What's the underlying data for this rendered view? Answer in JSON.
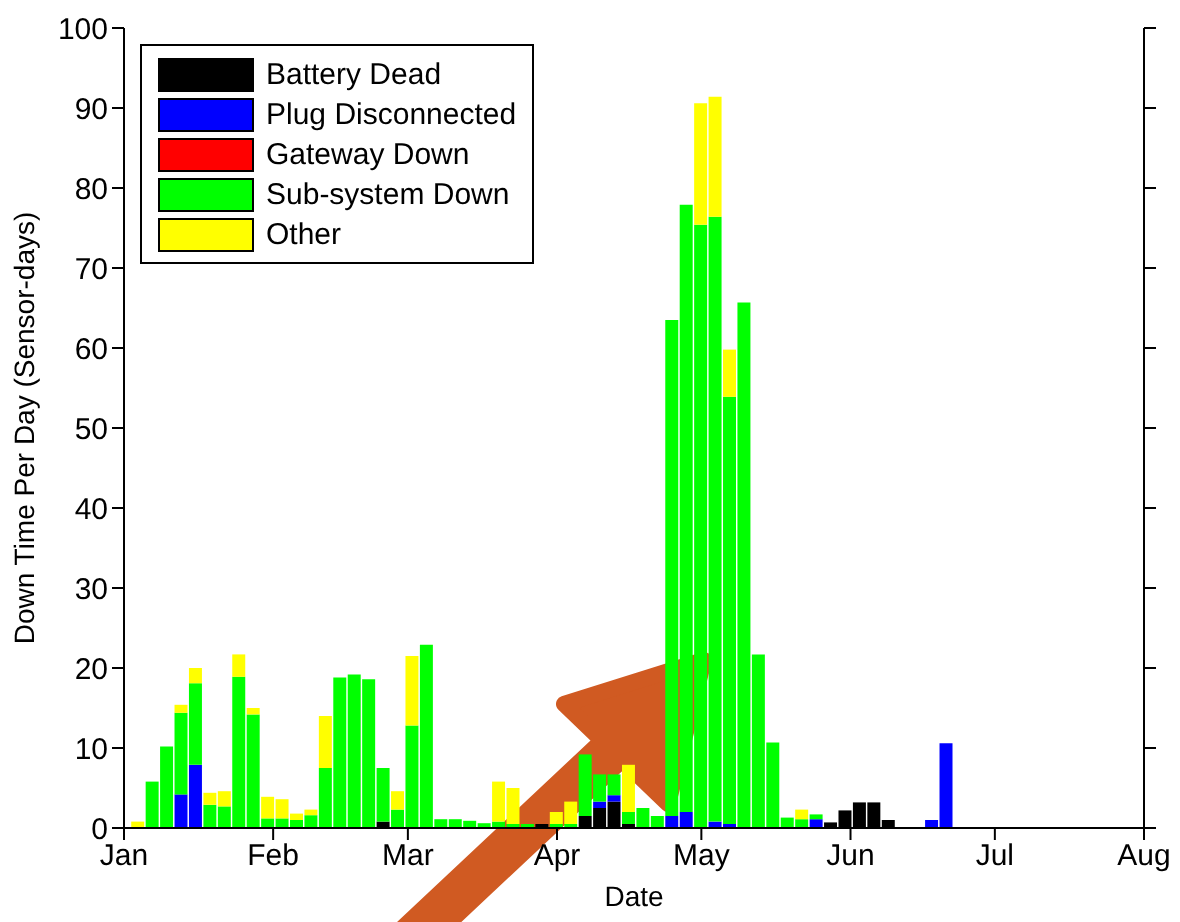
{
  "chart_data": {
    "type": "bar",
    "stacked": true,
    "xlabel": "Date",
    "ylabel": "Down Time Per Day (Sensor-days)",
    "x": [
      "--01-04",
      "--01-07",
      "--01-10",
      "--01-13",
      "--01-16",
      "--01-19",
      "--01-22",
      "--01-25",
      "--01-28",
      "--01-31",
      "--02-03",
      "--02-06",
      "--02-09",
      "--02-12",
      "--02-15",
      "--02-18",
      "--02-21",
      "--02-24",
      "--02-27",
      "--03-02",
      "--03-05",
      "--03-08",
      "--03-11",
      "--03-14",
      "--03-17",
      "--03-20",
      "--03-23",
      "--03-26",
      "--03-29",
      "--04-01",
      "--04-04",
      "--04-07",
      "--04-10",
      "--04-13",
      "--04-16",
      "--04-19",
      "--04-22",
      "--04-25",
      "--04-28",
      "--05-01",
      "--05-04",
      "--05-07",
      "--05-10",
      "--05-13",
      "--05-16",
      "--05-19",
      "--05-22",
      "--05-25",
      "--05-28",
      "--05-31",
      "--06-03",
      "--06-06",
      "--06-09",
      "--06-12",
      "--06-15",
      "--06-18",
      "--06-21"
    ],
    "series": [
      {
        "name": "Battery Dead",
        "color": "#000000",
        "values": [
          0,
          0,
          0,
          0,
          0,
          0,
          0,
          0,
          0,
          0,
          0,
          0,
          0,
          0,
          0,
          0,
          0,
          0.8,
          0,
          0,
          0,
          0,
          0,
          0,
          0,
          0,
          0,
          0,
          0.5,
          0,
          0,
          1.5,
          2.5,
          3.3,
          0.5,
          0,
          0,
          0,
          0,
          0,
          0,
          0,
          0,
          0,
          0,
          0,
          0,
          0,
          0.7,
          2.2,
          3.2,
          3.2,
          1,
          0,
          0,
          0,
          0
        ]
      },
      {
        "name": "Plug Disconnected",
        "color": "#0000ff",
        "values": [
          0,
          0,
          0,
          4.2,
          7.9,
          0,
          0,
          0,
          0,
          0,
          0,
          0,
          0,
          0,
          0,
          0,
          0,
          0,
          0,
          0,
          0,
          0,
          0,
          0,
          0,
          0,
          0,
          0,
          0,
          0,
          0,
          0,
          0.8,
          0.8,
          0,
          0,
          0,
          1.5,
          2,
          0,
          0.8,
          0.5,
          0,
          0,
          0,
          0,
          0,
          1.1,
          0,
          0,
          0,
          0,
          0,
          0,
          0,
          1,
          10.6
        ]
      },
      {
        "name": "Gateway Down",
        "color": "#ff0000",
        "values": [
          0,
          0,
          0,
          0,
          0,
          0,
          0,
          0,
          0,
          0,
          0,
          0,
          0,
          0,
          0,
          0,
          0,
          0,
          0,
          0,
          0,
          0,
          0,
          0,
          0,
          0,
          0,
          0,
          0,
          0,
          0,
          0,
          0,
          0,
          0,
          0,
          0,
          0,
          0,
          0,
          0,
          0,
          0,
          0,
          0,
          0,
          0,
          0,
          0,
          0,
          0,
          0,
          0,
          0,
          0,
          0,
          0
        ]
      },
      {
        "name": "Sub-system Down",
        "color": "#00ff00",
        "values": [
          0,
          5.8,
          10.2,
          10.2,
          10.2,
          2.9,
          2.7,
          18.9,
          14.2,
          1.2,
          1.2,
          1,
          1.6,
          7.5,
          18.8,
          19.2,
          18.6,
          6.7,
          2.3,
          12.8,
          22.9,
          1.1,
          1.1,
          0.9,
          0.6,
          0.8,
          0.5,
          0.5,
          0,
          0.5,
          0.5,
          7.7,
          3.4,
          2.6,
          1.5,
          2.5,
          1.5,
          62,
          75.9,
          75.4,
          75.6,
          53.4,
          65.7,
          21.7,
          10.7,
          1.3,
          1.1,
          0.6,
          0,
          0,
          0,
          0,
          0,
          0,
          0,
          0,
          0
        ]
      },
      {
        "name": "Other",
        "color": "#ffff00",
        "values": [
          0.8,
          0,
          0,
          1,
          1.9,
          1.5,
          1.9,
          2.8,
          0.8,
          2.7,
          2.4,
          0.8,
          0.7,
          6.5,
          0,
          0,
          0,
          0,
          2.3,
          8.7,
          0,
          0,
          0,
          0,
          0,
          5,
          4.5,
          0,
          0,
          1.5,
          2.8,
          0,
          0,
          0,
          5.9,
          0,
          0,
          0,
          0,
          15.2,
          15,
          5.9,
          0,
          0,
          0,
          0,
          1.2,
          0,
          0,
          0,
          0,
          0,
          0,
          0,
          0,
          0,
          0
        ]
      }
    ],
    "xlim": [
      "--01-01",
      "--08-01"
    ],
    "xticks": [
      {
        "value": "--01-01",
        "label": "Jan"
      },
      {
        "value": "--02-01",
        "label": "Feb"
      },
      {
        "value": "--03-01",
        "label": "Mar"
      },
      {
        "value": "--04-01",
        "label": "Apr"
      },
      {
        "value": "--05-01",
        "label": "May"
      },
      {
        "value": "--06-01",
        "label": "Jun"
      },
      {
        "value": "--07-01",
        "label": "Jul"
      },
      {
        "value": "--08-01",
        "label": "Aug"
      }
    ],
    "ylim": [
      0,
      100
    ],
    "yticks": [
      0,
      10,
      20,
      30,
      40,
      50,
      60,
      70,
      80,
      90,
      100
    ],
    "grid": false,
    "legend": "top left"
  }
}
